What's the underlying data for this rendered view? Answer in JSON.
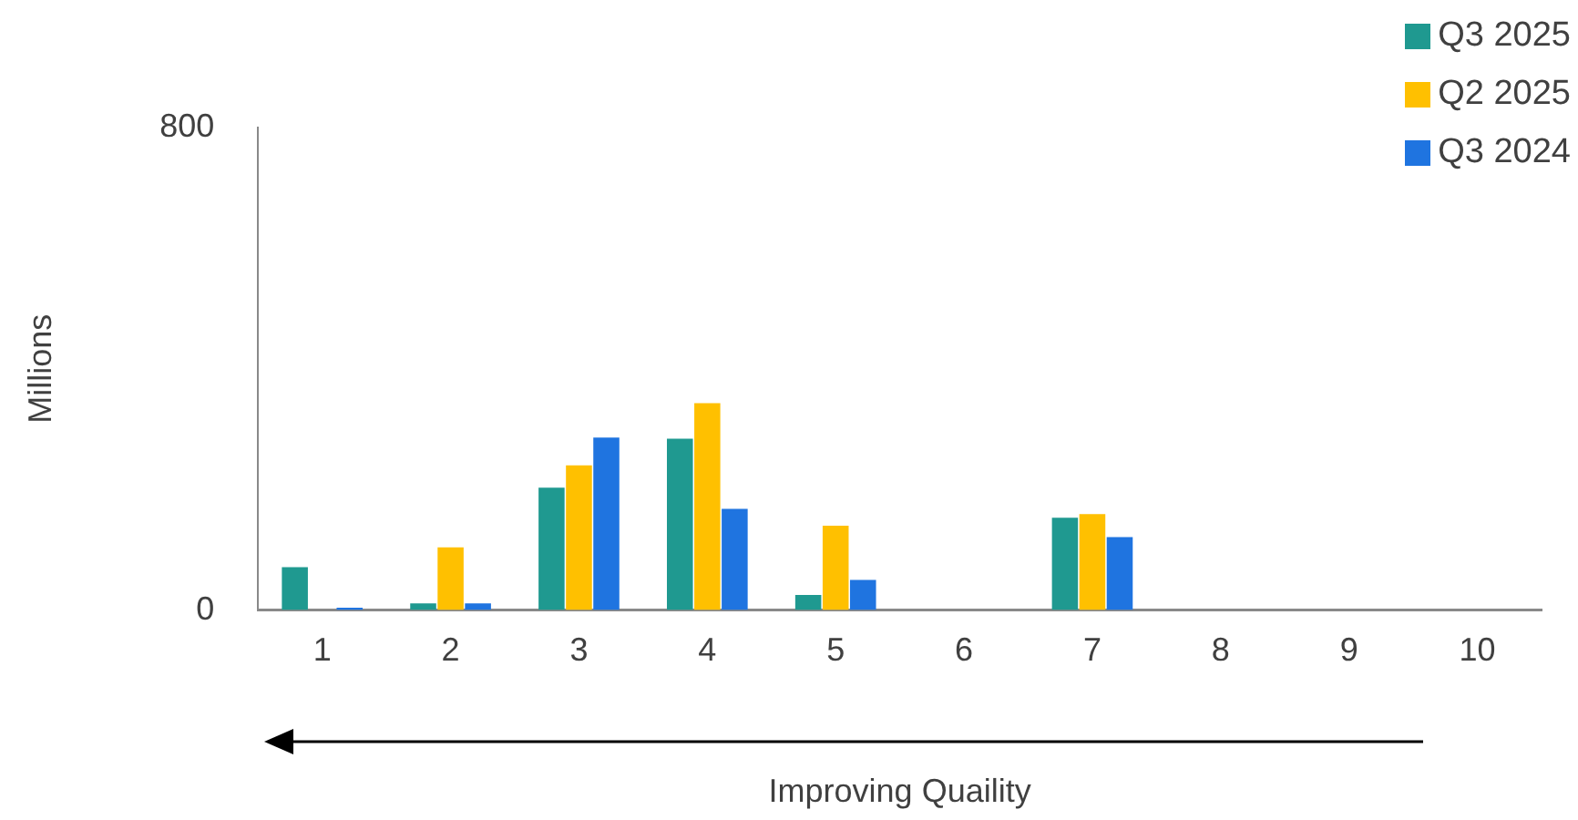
{
  "chart_data": {
    "type": "bar",
    "ylabel": "Millions",
    "xlabel": "Improving Quaility",
    "categories": [
      "1",
      "2",
      "3",
      "4",
      "5",
      "6",
      "7",
      "8",
      "9",
      "10"
    ],
    "series": [
      {
        "name": "Q3 2025",
        "color": "#1f9990",
        "values": [
          71,
          11,
          203,
          284,
          25,
          null,
          153,
          null,
          null,
          null
        ]
      },
      {
        "name": "Q2 2025",
        "color": "#ffc000",
        "values": [
          null,
          104,
          240,
          343,
          140,
          null,
          159,
          null,
          null,
          null
        ]
      },
      {
        "name": "Q3 2024",
        "color": "#1f74e0",
        "values": [
          4,
          11,
          286,
          168,
          50,
          null,
          121,
          null,
          null,
          null
        ]
      }
    ],
    "ylim": [
      0,
      800
    ],
    "yticks": [
      0,
      800
    ],
    "grid": false,
    "legend": "top right"
  }
}
